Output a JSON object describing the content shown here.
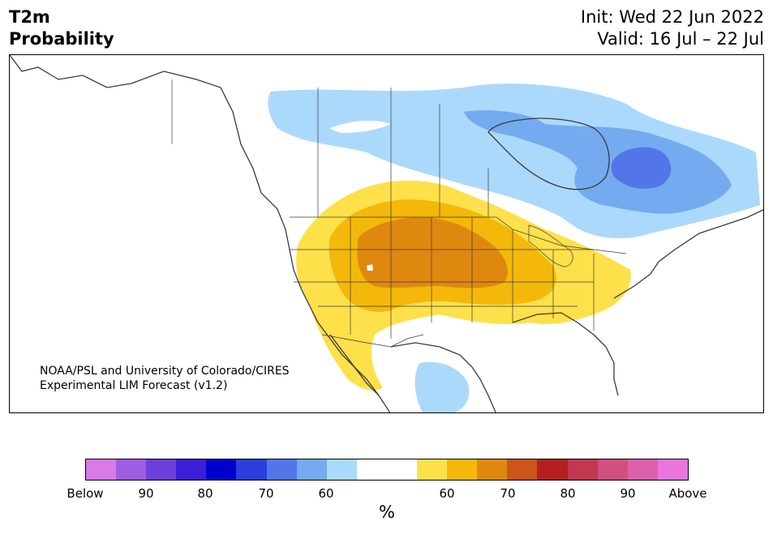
{
  "header": {
    "variable": "T2m",
    "kind": "Probability",
    "init": "Init: Wed 22 Jun 2022",
    "valid": "Valid: 16 Jul – 22 Jul"
  },
  "credit": {
    "line1": "NOAA/PSL and University of Colorado/CIRES",
    "line2": "Experimental LIM Forecast (v1.2)"
  },
  "legend": {
    "unit": "%",
    "colors": [
      "#d67be8",
      "#a05de0",
      "#6f3fdc",
      "#3a1fd4",
      "#0000cc",
      "#2a3fdc",
      "#5276e8",
      "#74aaf0",
      "#abd9fc",
      "#ffffff",
      "#ffffff",
      "#fee04a",
      "#f3b80a",
      "#df880f",
      "#cc5519",
      "#b42020",
      "#c23850",
      "#d0507e",
      "#dd60aa",
      "#e876dc"
    ],
    "labels": {
      "below": "Below",
      "b90": "90",
      "b80": "80",
      "b70": "70",
      "b60": "60",
      "a60": "60",
      "a70": "70",
      "a80": "80",
      "a90": "90",
      "above": "Above"
    }
  },
  "map_colors": {
    "light_blue": "#abd9fc",
    "mid_blue": "#74aaf0",
    "dark_blue": "#5276e8",
    "yellow": "#fee04a",
    "gold": "#f3b80a",
    "orange": "#df880f",
    "coast": "#3a3a3a"
  }
}
